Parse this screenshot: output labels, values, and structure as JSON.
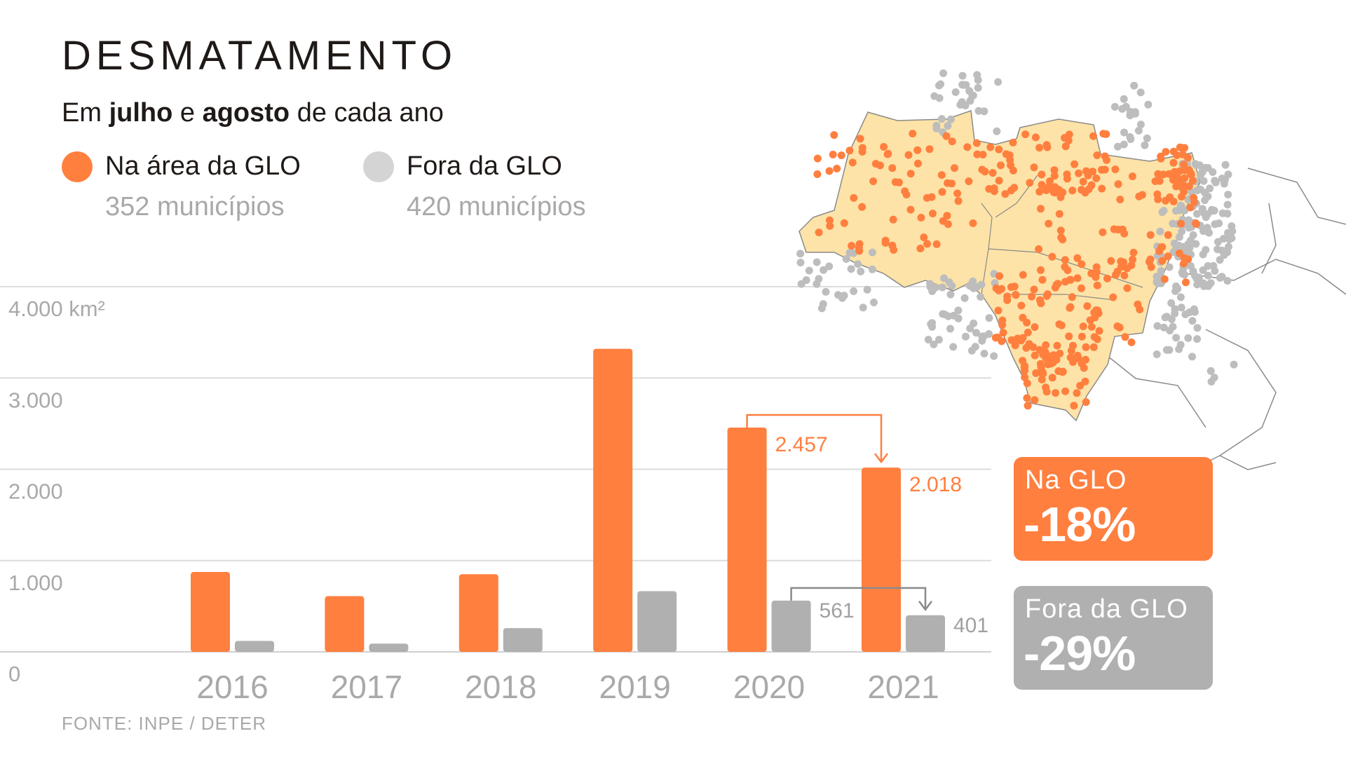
{
  "header": {
    "title": "DESMATAMENTO",
    "subtitle_pre": "Em ",
    "subtitle_b1": "julho",
    "subtitle_mid": " e ",
    "subtitle_b2": "agosto",
    "subtitle_post": " de cada ano"
  },
  "legend": [
    {
      "label": "Na área da GLO",
      "count": "352 municípios",
      "color": "#ff7f3f"
    },
    {
      "label": "Fora da GLO",
      "count": "420 municípios",
      "color": "#d4d4d4"
    }
  ],
  "source": "FONTE: INPE / DETER",
  "colors": {
    "glo": "#ff7f3f",
    "outside": "#b0b0b0",
    "legend_outside": "#d4d4d4",
    "grid": "#dcdcdc",
    "axis_text": "#a9a9a9",
    "map_fill": "#fde3a7"
  },
  "chart_data": {
    "type": "bar",
    "categories": [
      "2016",
      "2017",
      "2018",
      "2019",
      "2020",
      "2021"
    ],
    "series": [
      {
        "name": "Na área da GLO",
        "values": [
          875,
          610,
          850,
          3320,
          2457,
          2018
        ]
      },
      {
        "name": "Fora da GLO",
        "values": [
          120,
          90,
          260,
          665,
          561,
          401
        ]
      }
    ],
    "yticks": [
      "0",
      "1.000",
      "2.000",
      "3.000",
      "4.000 km²"
    ],
    "ylim": [
      0,
      4000
    ],
    "data_labels": [
      {
        "series": 0,
        "index": 4,
        "text": "2.457"
      },
      {
        "series": 0,
        "index": 5,
        "text": "2.018"
      },
      {
        "series": 1,
        "index": 4,
        "text": "561"
      },
      {
        "series": 1,
        "index": 5,
        "text": "401"
      }
    ],
    "grid": true,
    "legend_position": "top-left"
  },
  "badges": [
    {
      "label": "Na GLO",
      "value": "-18%",
      "color": "#ff7f3f"
    },
    {
      "label": "Fora da GLO",
      "value": "-29%",
      "color": "#b0b0b0"
    }
  ],
  "map": {
    "icon": "brazil-deforestation-map",
    "fill": "#fde3a7",
    "glo_dot_color": "#ff7f3f",
    "outside_dot_color": "#bdbdbd"
  }
}
